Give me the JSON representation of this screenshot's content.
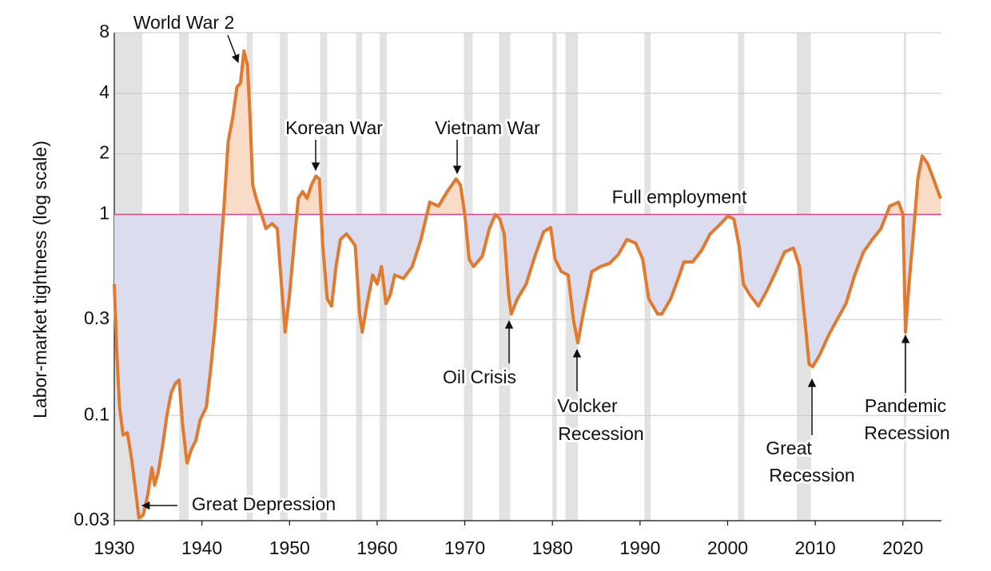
{
  "chart_data": {
    "type": "line",
    "ylabel": "Labor-market tightness (log scale)",
    "log_y": true,
    "grid": true,
    "xlim": [
      1930,
      2024.4
    ],
    "xticks": [
      1930,
      1940,
      1950,
      1960,
      1970,
      1980,
      1990,
      2000,
      2010,
      2020
    ],
    "ylim": [
      0.03,
      8
    ],
    "yticks": [
      0.03,
      0.1,
      0.3,
      1,
      2,
      4,
      8
    ],
    "recessions": [
      [
        1929.7,
        1933.2
      ],
      [
        1937.4,
        1938.5
      ],
      [
        1945.1,
        1945.8
      ],
      [
        1948.9,
        1949.8
      ],
      [
        1953.5,
        1954.3
      ],
      [
        1957.6,
        1958.3
      ],
      [
        1960.3,
        1961.1
      ],
      [
        1969.9,
        1970.9
      ],
      [
        1973.9,
        1975.2
      ],
      [
        1980.0,
        1980.5
      ],
      [
        1981.5,
        1982.9
      ],
      [
        1990.5,
        1991.2
      ],
      [
        2001.2,
        2001.9
      ],
      [
        2007.9,
        2009.5
      ],
      [
        2020.1,
        2020.4
      ]
    ],
    "recession_color": "#e2e2e2",
    "reference_line": {
      "value": 1,
      "label": "Full employment",
      "color": "#d9468d"
    },
    "fill_above_color": "#f8dcc8",
    "fill_below_color": "#dcdcef",
    "series": [
      {
        "name": "Labor-market tightness",
        "color": "#e07a2e",
        "x": [
          1930.0,
          1930.3,
          1930.6,
          1931.0,
          1931.5,
          1932.0,
          1932.5,
          1932.8,
          1933.3,
          1933.8,
          1934.3,
          1934.6,
          1935.0,
          1935.5,
          1936.0,
          1936.5,
          1937.0,
          1937.4,
          1937.8,
          1938.3,
          1938.8,
          1939.3,
          1939.8,
          1940.5,
          1941.0,
          1941.5,
          1942.0,
          1942.5,
          1943.0,
          1943.5,
          1944.0,
          1944.4,
          1944.8,
          1945.2,
          1945.5,
          1945.8,
          1946.2,
          1946.8,
          1947.3,
          1948.0,
          1948.6,
          1949.0,
          1949.5,
          1950.0,
          1950.5,
          1951.0,
          1951.5,
          1952.0,
          1952.5,
          1953.0,
          1953.4,
          1953.8,
          1954.3,
          1954.8,
          1955.3,
          1955.8,
          1956.5,
          1957.0,
          1957.5,
          1958.0,
          1958.3,
          1958.8,
          1959.5,
          1960.0,
          1960.5,
          1961.0,
          1961.5,
          1962.0,
          1963.0,
          1964.0,
          1965.0,
          1966.0,
          1967.0,
          1968.0,
          1969.0,
          1969.5,
          1970.0,
          1970.5,
          1971.0,
          1972.0,
          1972.8,
          1973.5,
          1974.0,
          1974.5,
          1975.0,
          1975.3,
          1976.0,
          1977.0,
          1978.0,
          1979.0,
          1979.8,
          1980.3,
          1981.0,
          1981.8,
          1982.4,
          1982.9,
          1983.5,
          1984.5,
          1985.5,
          1986.5,
          1987.5,
          1988.5,
          1989.5,
          1990.3,
          1991.0,
          1992.0,
          1992.5,
          1993.5,
          1994.5,
          1995.0,
          1996.0,
          1997.0,
          1998.0,
          1999.0,
          2000.0,
          2000.7,
          2001.3,
          2001.8,
          2002.5,
          2003.5,
          2004.5,
          2005.5,
          2006.5,
          2007.5,
          2008.2,
          2008.8,
          2009.3,
          2009.7,
          2010.5,
          2011.5,
          2012.5,
          2013.5,
          2014.5,
          2015.5,
          2016.5,
          2017.5,
          2018.5,
          2019.5,
          2020.0,
          2020.3,
          2020.7,
          2021.2,
          2021.7,
          2022.2,
          2022.8,
          2023.5,
          2024.3
        ],
        "values": [
          0.45,
          0.2,
          0.11,
          0.08,
          0.082,
          0.06,
          0.04,
          0.031,
          0.032,
          0.04,
          0.055,
          0.045,
          0.052,
          0.07,
          0.1,
          0.13,
          0.145,
          0.15,
          0.09,
          0.058,
          0.068,
          0.075,
          0.095,
          0.11,
          0.17,
          0.28,
          0.55,
          1.05,
          2.3,
          3.0,
          4.3,
          4.5,
          6.5,
          5.5,
          3.0,
          1.4,
          1.2,
          1.0,
          0.85,
          0.9,
          0.85,
          0.5,
          0.26,
          0.4,
          0.7,
          1.2,
          1.3,
          1.2,
          1.4,
          1.55,
          1.5,
          0.7,
          0.38,
          0.35,
          0.55,
          0.75,
          0.8,
          0.75,
          0.7,
          0.32,
          0.26,
          0.35,
          0.5,
          0.45,
          0.55,
          0.36,
          0.4,
          0.5,
          0.48,
          0.55,
          0.75,
          1.15,
          1.1,
          1.3,
          1.5,
          1.4,
          1.0,
          0.6,
          0.55,
          0.62,
          0.85,
          1.0,
          0.95,
          0.8,
          0.4,
          0.32,
          0.38,
          0.45,
          0.62,
          0.82,
          0.86,
          0.6,
          0.52,
          0.5,
          0.3,
          0.23,
          0.32,
          0.52,
          0.55,
          0.57,
          0.63,
          0.75,
          0.72,
          0.6,
          0.38,
          0.32,
          0.32,
          0.38,
          0.5,
          0.58,
          0.58,
          0.66,
          0.8,
          0.88,
          0.98,
          0.95,
          0.7,
          0.45,
          0.4,
          0.35,
          0.42,
          0.52,
          0.65,
          0.68,
          0.55,
          0.3,
          0.18,
          0.175,
          0.2,
          0.25,
          0.3,
          0.36,
          0.5,
          0.65,
          0.75,
          0.85,
          1.1,
          1.15,
          1.0,
          0.26,
          0.45,
          0.8,
          1.5,
          1.95,
          1.8,
          1.5,
          1.2
        ]
      }
    ],
    "annotations": [
      {
        "lines": [
          "World War 2"
        ]
      },
      {
        "lines": [
          "Korean War"
        ]
      },
      {
        "lines": [
          "Vietnam War"
        ]
      },
      {
        "lines": [
          "Great Depression"
        ]
      },
      {
        "lines": [
          "Oil Crisis"
        ]
      },
      {
        "lines": [
          "Volcker",
          "Recession"
        ]
      },
      {
        "lines": [
          "Great",
          "Recession"
        ]
      },
      {
        "lines": [
          "Pandemic",
          "Recession"
        ]
      }
    ]
  }
}
